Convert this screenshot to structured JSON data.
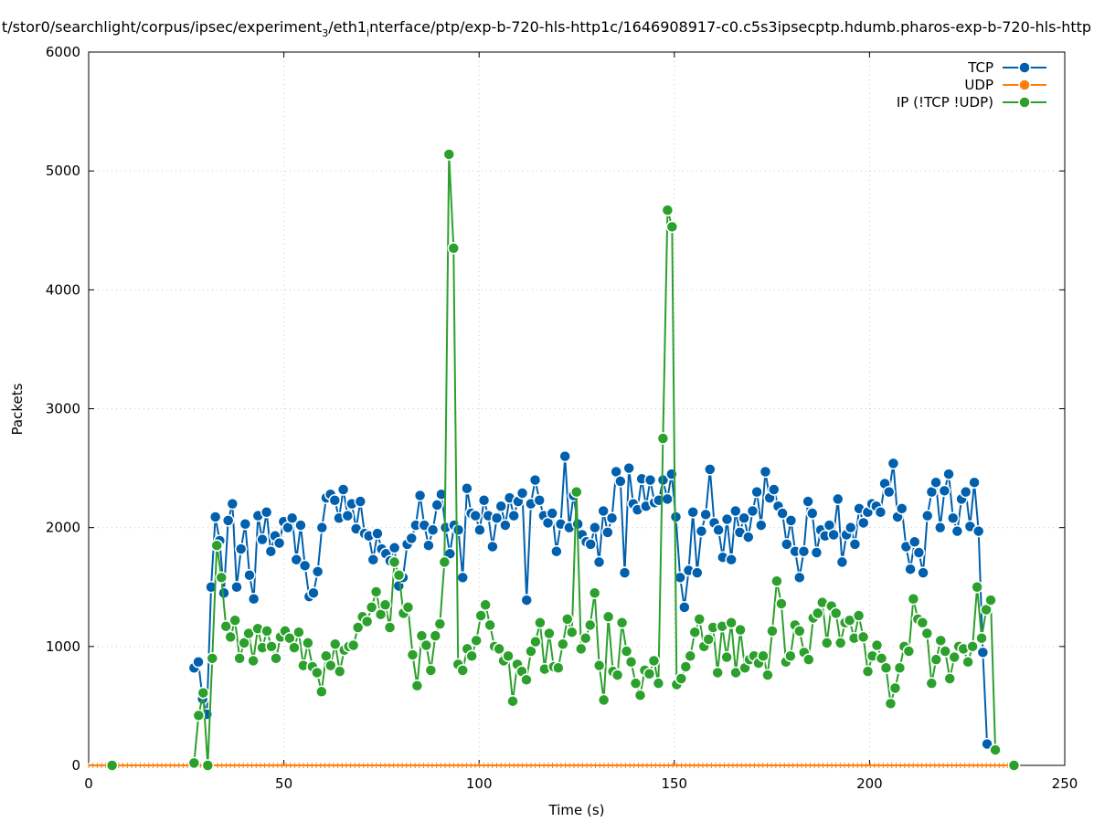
{
  "chart_data": {
    "type": "line",
    "title": "t/stor0/searchlight/corpus/ipsec/experiment_3/eth1_interface/ptp/exp-b-720-hls-http1c/1646908917-c0.c5s3ipsecptp.hdumb.pharos-exp-b-720-hls-http",
    "title_parts": {
      "a": "t/stor0/searchlight/corpus/ipsec/experiment",
      "sub1": "3",
      "b": "/eth1",
      "sub2": "i",
      "c": "nterface/ptp/exp-b-720-hls-http1c/1646908917-c0.c5s3ipsecptp.hdumb.pharos-exp-b-720-hls-http"
    },
    "xlabel": "Time (s)",
    "ylabel": "Packets",
    "xlim": [
      0,
      250
    ],
    "ylim": [
      0,
      6000
    ],
    "xticks": [
      0,
      50,
      100,
      150,
      200,
      250
    ],
    "yticks": [
      0,
      1000,
      2000,
      3000,
      4000,
      5000,
      6000
    ],
    "grid": true,
    "legend_position": "top-right",
    "series": [
      {
        "name": "TCP",
        "color": "#0060ad",
        "x_start": 27,
        "x_step": 1.092,
        "values": [
          820,
          870,
          560,
          430,
          1500,
          2090,
          1890,
          1450,
          2060,
          2200,
          1500,
          1820,
          2030,
          1600,
          1400,
          2100,
          1900,
          2130,
          1800,
          1930,
          1870,
          2050,
          2000,
          2080,
          1730,
          2020,
          1680,
          1420,
          1450,
          1630,
          2000,
          2250,
          2280,
          2230,
          2080,
          2320,
          2100,
          2200,
          1990,
          2220,
          1950,
          1930,
          1730,
          1950,
          1820,
          1780,
          1720,
          1830,
          1510,
          1580,
          1860,
          1910,
          2020,
          2270,
          2020,
          1850,
          1980,
          2190,
          2280,
          2000,
          1780,
          2020,
          1980,
          1580,
          2330,
          2120,
          2100,
          1980,
          2230,
          2100,
          1840,
          2080,
          2180,
          2020,
          2250,
          2100,
          2220,
          2290,
          1390,
          2200,
          2400,
          2230,
          2100,
          2040,
          2120,
          1800,
          2030,
          2600,
          2000,
          2270,
          2030,
          1940,
          1880,
          1860,
          2000,
          1710,
          2140,
          1960,
          2080,
          2470,
          2390,
          1620,
          2500,
          2200,
          2150,
          2410,
          2180,
          2400,
          2210,
          2230,
          2400,
          2240,
          2450,
          2090,
          1580,
          1330,
          1640,
          2130,
          1620,
          1970,
          2110,
          2490,
          2040,
          1980,
          1750,
          2070,
          1730,
          2140,
          1960,
          2080,
          1920,
          2140,
          2300,
          2020,
          2470,
          2250,
          2320,
          2180,
          2120,
          1860,
          2060,
          1800,
          1580,
          1800,
          2220,
          2120,
          1790,
          1980,
          1930,
          2020,
          1940,
          2240,
          1710,
          1940,
          2000,
          1860,
          2160,
          2040,
          2130,
          2200,
          2180,
          2130,
          2370,
          2300,
          2540,
          2090,
          2160,
          1840,
          1650,
          1880,
          1790,
          1620,
          2100,
          2300,
          2380,
          2000,
          2310,
          2450,
          2080,
          1970,
          2240,
          2300,
          2010,
          2380,
          1970,
          950,
          180
        ]
      },
      {
        "name": "UDP",
        "color": "#ff7f0e",
        "x_start": 0,
        "x_step": 1.1,
        "constant_value": 0,
        "count": 216
      },
      {
        "name": "IP (!TCP  !UDP)",
        "color": "#2ca02c",
        "x_start": 27,
        "x_step": 1.166,
        "values": [
          20,
          420,
          610,
          0,
          900,
          1850,
          1580,
          1170,
          1080,
          1220,
          900,
          1030,
          1110,
          880,
          1150,
          990,
          1130,
          1000,
          900,
          1080,
          1130,
          1070,
          990,
          1120,
          840,
          1030,
          830,
          780,
          620,
          920,
          840,
          1020,
          790,
          970,
          1000,
          1010,
          1160,
          1250,
          1210,
          1330,
          1460,
          1270,
          1350,
          1160,
          1710,
          1600,
          1280,
          1330,
          930,
          670,
          1090,
          1010,
          800,
          1090,
          1190,
          1710,
          5140,
          4350,
          850,
          800,
          980,
          920,
          1050,
          1260,
          1350,
          1180,
          1000,
          980,
          880,
          920,
          540,
          850,
          790,
          720,
          960,
          1040,
          1200,
          810,
          1110,
          830,
          820,
          1020,
          1230,
          1120,
          2300,
          980,
          1070,
          1180,
          1450,
          840,
          550,
          1250,
          790,
          760,
          1200,
          960,
          870,
          690,
          590,
          800,
          770,
          880,
          690,
          2750,
          4670,
          4530,
          680,
          730,
          830,
          920,
          1120,
          1230,
          1000,
          1060,
          1160,
          780,
          1170,
          910,
          1200,
          780,
          1140,
          820,
          890,
          920,
          860,
          920,
          760,
          1130,
          1550,
          1360,
          870,
          920,
          1180,
          1130,
          950,
          890,
          1240,
          1280,
          1370,
          1030,
          1340,
          1280,
          1030,
          1200,
          1220,
          1070,
          1260,
          1080,
          790,
          920,
          1010,
          900,
          820,
          520,
          650,
          820,
          1000,
          960,
          1400,
          1230,
          1200,
          1110,
          690,
          890,
          1050,
          960,
          730,
          910,
          1000,
          980,
          870,
          1000,
          1500,
          1070,
          1310,
          1390,
          130
        ],
        "extra_points": [
          [
            6,
            0
          ],
          [
            237,
            0
          ]
        ]
      }
    ]
  }
}
